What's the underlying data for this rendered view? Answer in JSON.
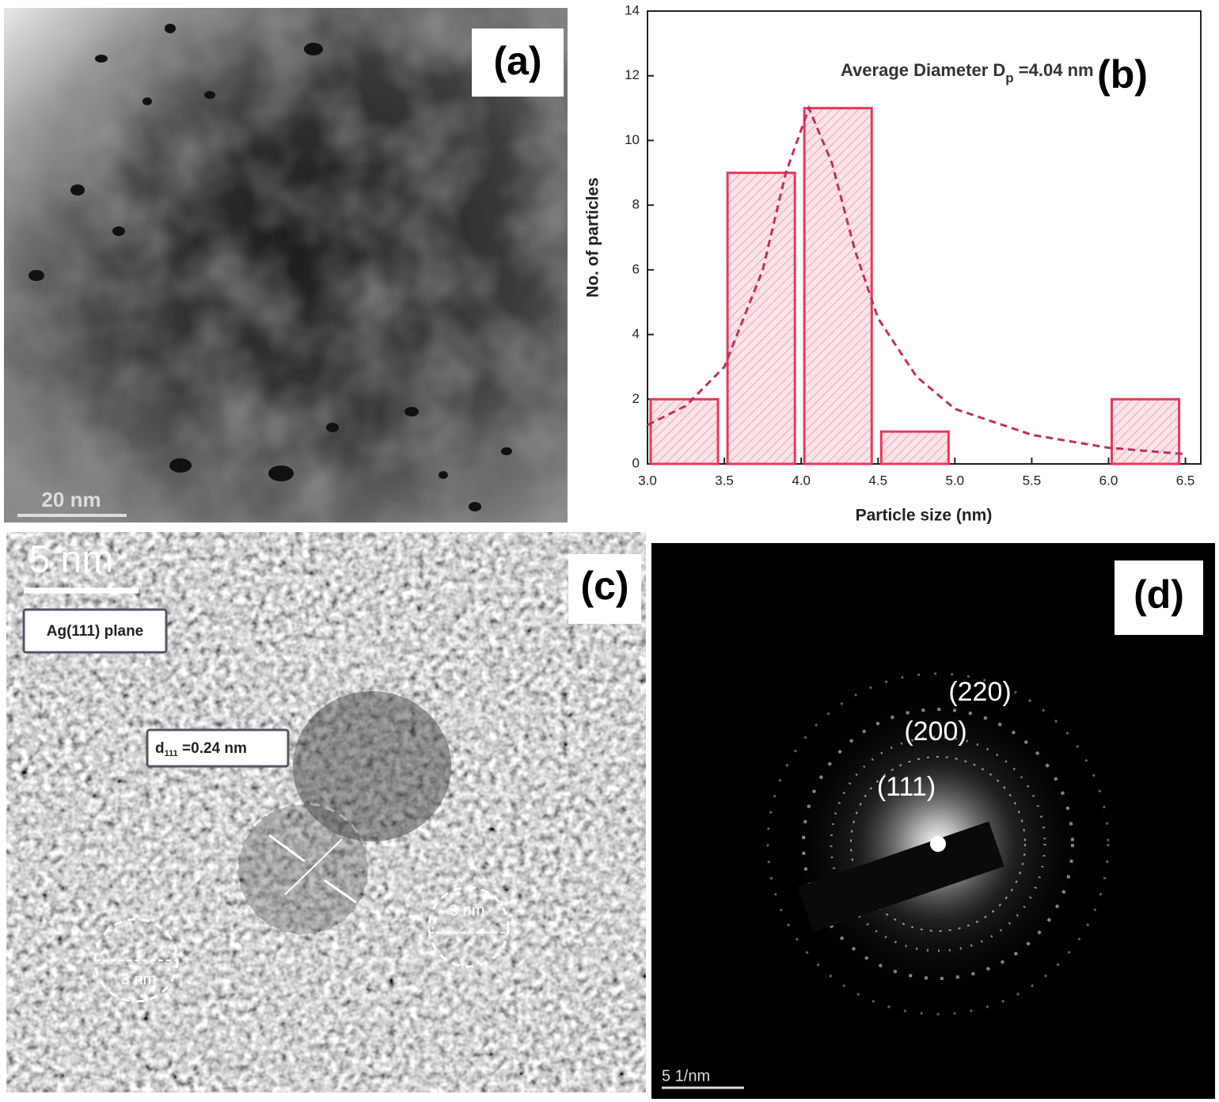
{
  "chart_data": {
    "type": "histogram",
    "xlabel": "Particle size (nm)",
    "ylabel": "No. of particles",
    "annotation": {
      "text": "Average Diameter D",
      "sub": "p",
      "tail": " =4.04 nm"
    },
    "bins": [
      3.0,
      3.5,
      4.0,
      4.5,
      5.0,
      5.5,
      6.0,
      6.5
    ],
    "values": [
      2,
      9,
      11,
      1,
      0,
      0,
      2
    ],
    "color": "#e8385a",
    "fit": {
      "x": [
        3.0,
        3.25,
        3.5,
        3.75,
        3.9,
        4.05,
        4.2,
        4.35,
        4.5,
        4.75,
        5.0,
        5.5,
        6.0,
        6.5
      ],
      "values": [
        1.2,
        1.8,
        3.0,
        6.0,
        9.0,
        11,
        9.3,
        6.6,
        4.5,
        2.7,
        1.7,
        0.9,
        0.5,
        0.3
      ],
      "color": "#c0305a"
    },
    "xlim": [
      3.0,
      6.6
    ],
    "ylim": [
      0,
      14
    ],
    "xticks": [
      {
        "value": 3,
        "label": "3.0"
      },
      3.5,
      {
        "value": 4,
        "label": "4.0"
      },
      4.5,
      {
        "value": 5,
        "label": "5.0"
      },
      5.5,
      {
        "value": 6,
        "label": "6.0"
      },
      6.5
    ],
    "yticks": [
      0,
      2,
      4,
      6,
      8,
      10,
      12,
      14
    ]
  },
  "panels": {
    "a": {
      "label": "(a)",
      "scale_bar": "20 nm"
    },
    "b": {
      "label": "(b)"
    },
    "c": {
      "label": "(c)",
      "scale_bar": "5 nm",
      "plane_label": "Ag(111) plane",
      "d_spacing": {
        "main": "d",
        "sub": "111",
        "tail": " =0.24 nm"
      },
      "circle_labels": [
        "3 nm",
        "3 nm"
      ]
    },
    "d": {
      "label": "(d)",
      "ring_labels": [
        "(220)",
        "(200)",
        "(111)"
      ],
      "scale_bar": "5 1/nm"
    }
  }
}
